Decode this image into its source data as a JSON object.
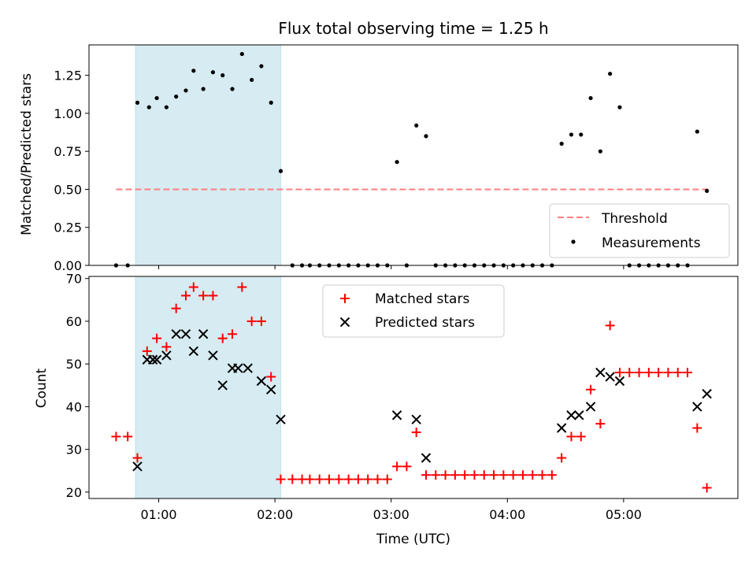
{
  "chart_data": [
    {
      "type": "scatter",
      "title": "Flux total observing time = 1.25 h",
      "xlabel": "",
      "ylabel": "Matched/Predicted stars",
      "ylim": [
        0,
        1.45
      ],
      "yticks": [
        "0.00",
        "0.25",
        "0.50",
        "0.75",
        "1.00",
        "1.25"
      ],
      "highlight_span": [
        "00:48",
        "02:03"
      ],
      "highlight_color": "#d4e9ef",
      "threshold": {
        "name": "Threshold",
        "value": 0.5,
        "x_range": [
          "00:38",
          "05:45"
        ],
        "color": "#ff7f7f",
        "style": "dashed"
      },
      "legend": {
        "placement": "lower right",
        "entries": [
          "Threshold",
          "Measurements"
        ]
      },
      "series": [
        {
          "name": "Measurements",
          "marker": "dot",
          "color": "#000000",
          "points": [
            [
              "00:38",
              0.0
            ],
            [
              "00:44",
              0.0
            ],
            [
              "00:49",
              1.07
            ],
            [
              "00:55",
              1.04
            ],
            [
              "00:59",
              1.1
            ],
            [
              "01:04",
              1.04
            ],
            [
              "01:09",
              1.11
            ],
            [
              "01:14",
              1.15
            ],
            [
              "01:18",
              1.28
            ],
            [
              "01:23",
              1.16
            ],
            [
              "01:28",
              1.27
            ],
            [
              "01:33",
              1.25
            ],
            [
              "01:38",
              1.16
            ],
            [
              "01:43",
              1.39
            ],
            [
              "01:48",
              1.22
            ],
            [
              "01:53",
              1.31
            ],
            [
              "01:58",
              1.07
            ],
            [
              "02:03",
              0.62
            ],
            [
              "02:09",
              0.0
            ],
            [
              "02:14",
              0.0
            ],
            [
              "02:18",
              0.0
            ],
            [
              "02:23",
              0.0
            ],
            [
              "02:28",
              0.0
            ],
            [
              "02:33",
              0.0
            ],
            [
              "02:38",
              0.0
            ],
            [
              "02:43",
              0.0
            ],
            [
              "02:48",
              0.0
            ],
            [
              "02:53",
              0.0
            ],
            [
              "02:58",
              0.0
            ],
            [
              "03:03",
              0.68
            ],
            [
              "03:08",
              0.0
            ],
            [
              "03:13",
              0.92
            ],
            [
              "03:18",
              0.85
            ],
            [
              "03:23",
              0.0
            ],
            [
              "03:28",
              0.0
            ],
            [
              "03:33",
              0.0
            ],
            [
              "03:38",
              0.0
            ],
            [
              "03:43",
              0.0
            ],
            [
              "03:48",
              0.0
            ],
            [
              "03:53",
              0.0
            ],
            [
              "03:58",
              0.0
            ],
            [
              "04:03",
              0.0
            ],
            [
              "04:08",
              0.0
            ],
            [
              "04:13",
              0.0
            ],
            [
              "04:18",
              0.0
            ],
            [
              "04:23",
              0.0
            ],
            [
              "04:28",
              0.8
            ],
            [
              "04:33",
              0.86
            ],
            [
              "04:38",
              0.86
            ],
            [
              "04:43",
              1.1
            ],
            [
              "04:48",
              0.75
            ],
            [
              "04:53",
              1.26
            ],
            [
              "04:58",
              1.04
            ],
            [
              "05:03",
              0.0
            ],
            [
              "05:08",
              0.0
            ],
            [
              "05:13",
              0.0
            ],
            [
              "05:18",
              0.0
            ],
            [
              "05:23",
              0.0
            ],
            [
              "05:28",
              0.0
            ],
            [
              "05:33",
              0.0
            ],
            [
              "05:38",
              0.88
            ],
            [
              "05:43",
              0.49
            ]
          ]
        }
      ]
    },
    {
      "type": "scatter",
      "title": "",
      "xlabel": "Time (UTC)",
      "ylabel": "Count",
      "xlim": [
        "00:24",
        "05:59"
      ],
      "ylim": [
        18.5,
        70.5
      ],
      "xticks": [
        "01:00",
        "02:00",
        "03:00",
        "04:00",
        "05:00"
      ],
      "yticks": [
        "20",
        "30",
        "40",
        "50",
        "60",
        "70"
      ],
      "highlight_span": [
        "00:48",
        "02:03"
      ],
      "legend": {
        "placement": "upper center",
        "entries": [
          "Matched stars",
          "Predicted stars"
        ]
      },
      "series": [
        {
          "name": "Matched stars",
          "marker": "plus",
          "color": "#ff0000",
          "points": [
            [
              "00:38",
              33
            ],
            [
              "00:44",
              33
            ],
            [
              "00:49",
              28
            ],
            [
              "00:54",
              53
            ],
            [
              "00:59",
              56
            ],
            [
              "01:04",
              54
            ],
            [
              "01:09",
              63
            ],
            [
              "01:14",
              66
            ],
            [
              "01:18",
              68
            ],
            [
              "01:23",
              66
            ],
            [
              "01:28",
              66
            ],
            [
              "01:33",
              56
            ],
            [
              "01:38",
              57
            ],
            [
              "01:43",
              68
            ],
            [
              "01:48",
              60
            ],
            [
              "01:53",
              60
            ],
            [
              "01:58",
              47
            ],
            [
              "02:03",
              23
            ],
            [
              "02:09",
              23
            ],
            [
              "02:14",
              23
            ],
            [
              "02:18",
              23
            ],
            [
              "02:23",
              23
            ],
            [
              "02:28",
              23
            ],
            [
              "02:33",
              23
            ],
            [
              "02:38",
              23
            ],
            [
              "02:43",
              23
            ],
            [
              "02:48",
              23
            ],
            [
              "02:53",
              23
            ],
            [
              "02:58",
              23
            ],
            [
              "03:03",
              26
            ],
            [
              "03:08",
              26
            ],
            [
              "03:13",
              34
            ],
            [
              "03:18",
              24
            ],
            [
              "03:23",
              24
            ],
            [
              "03:28",
              24
            ],
            [
              "03:33",
              24
            ],
            [
              "03:38",
              24
            ],
            [
              "03:43",
              24
            ],
            [
              "03:48",
              24
            ],
            [
              "03:53",
              24
            ],
            [
              "03:58",
              24
            ],
            [
              "04:03",
              24
            ],
            [
              "04:08",
              24
            ],
            [
              "04:13",
              24
            ],
            [
              "04:18",
              24
            ],
            [
              "04:23",
              24
            ],
            [
              "04:28",
              28
            ],
            [
              "04:33",
              33
            ],
            [
              "04:38",
              33
            ],
            [
              "04:43",
              44
            ],
            [
              "04:48",
              36
            ],
            [
              "04:53",
              59
            ],
            [
              "04:58",
              48
            ],
            [
              "05:03",
              48
            ],
            [
              "05:08",
              48
            ],
            [
              "05:13",
              48
            ],
            [
              "05:18",
              48
            ],
            [
              "05:23",
              48
            ],
            [
              "05:28",
              48
            ],
            [
              "05:33",
              48
            ],
            [
              "05:38",
              35
            ],
            [
              "05:43",
              21
            ]
          ]
        },
        {
          "name": "Predicted stars",
          "marker": "x",
          "color": "#000000",
          "points": [
            [
              "00:49",
              26
            ],
            [
              "00:54",
              51
            ],
            [
              "00:57",
              51
            ],
            [
              "00:59",
              51
            ],
            [
              "01:04",
              52
            ],
            [
              "01:09",
              57
            ],
            [
              "01:14",
              57
            ],
            [
              "01:18",
              53
            ],
            [
              "01:23",
              57
            ],
            [
              "01:28",
              52
            ],
            [
              "01:33",
              45
            ],
            [
              "01:38",
              49
            ],
            [
              "01:41",
              49
            ],
            [
              "01:46",
              49
            ],
            [
              "01:53",
              46
            ],
            [
              "01:58",
              44
            ],
            [
              "02:03",
              37
            ],
            [
              "03:03",
              38
            ],
            [
              "03:13",
              37
            ],
            [
              "03:18",
              28
            ],
            [
              "04:28",
              35
            ],
            [
              "04:33",
              38
            ],
            [
              "04:37",
              38
            ],
            [
              "04:43",
              40
            ],
            [
              "04:48",
              48
            ],
            [
              "04:53",
              47
            ],
            [
              "04:58",
              46
            ],
            [
              "05:38",
              40
            ],
            [
              "05:43",
              43
            ]
          ]
        }
      ]
    }
  ]
}
